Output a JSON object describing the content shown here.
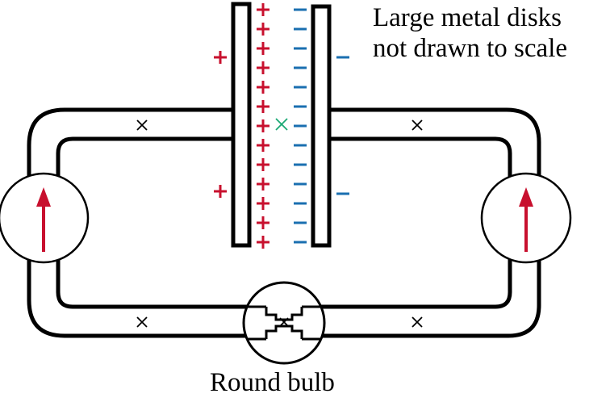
{
  "labels": {
    "disks_line1": "Large metal disks",
    "disks_line2": "not drawn to scale",
    "bulb": "Round bulb"
  },
  "glyphs": {
    "plus": "+",
    "minus": "−",
    "cross": "×"
  },
  "colors": {
    "wire": "#000000",
    "positive": "#c8102e",
    "negative": "#1a6fb0",
    "center_mark": "#1aa874",
    "arrow": "#c8102e",
    "background": "#ffffff"
  }
}
